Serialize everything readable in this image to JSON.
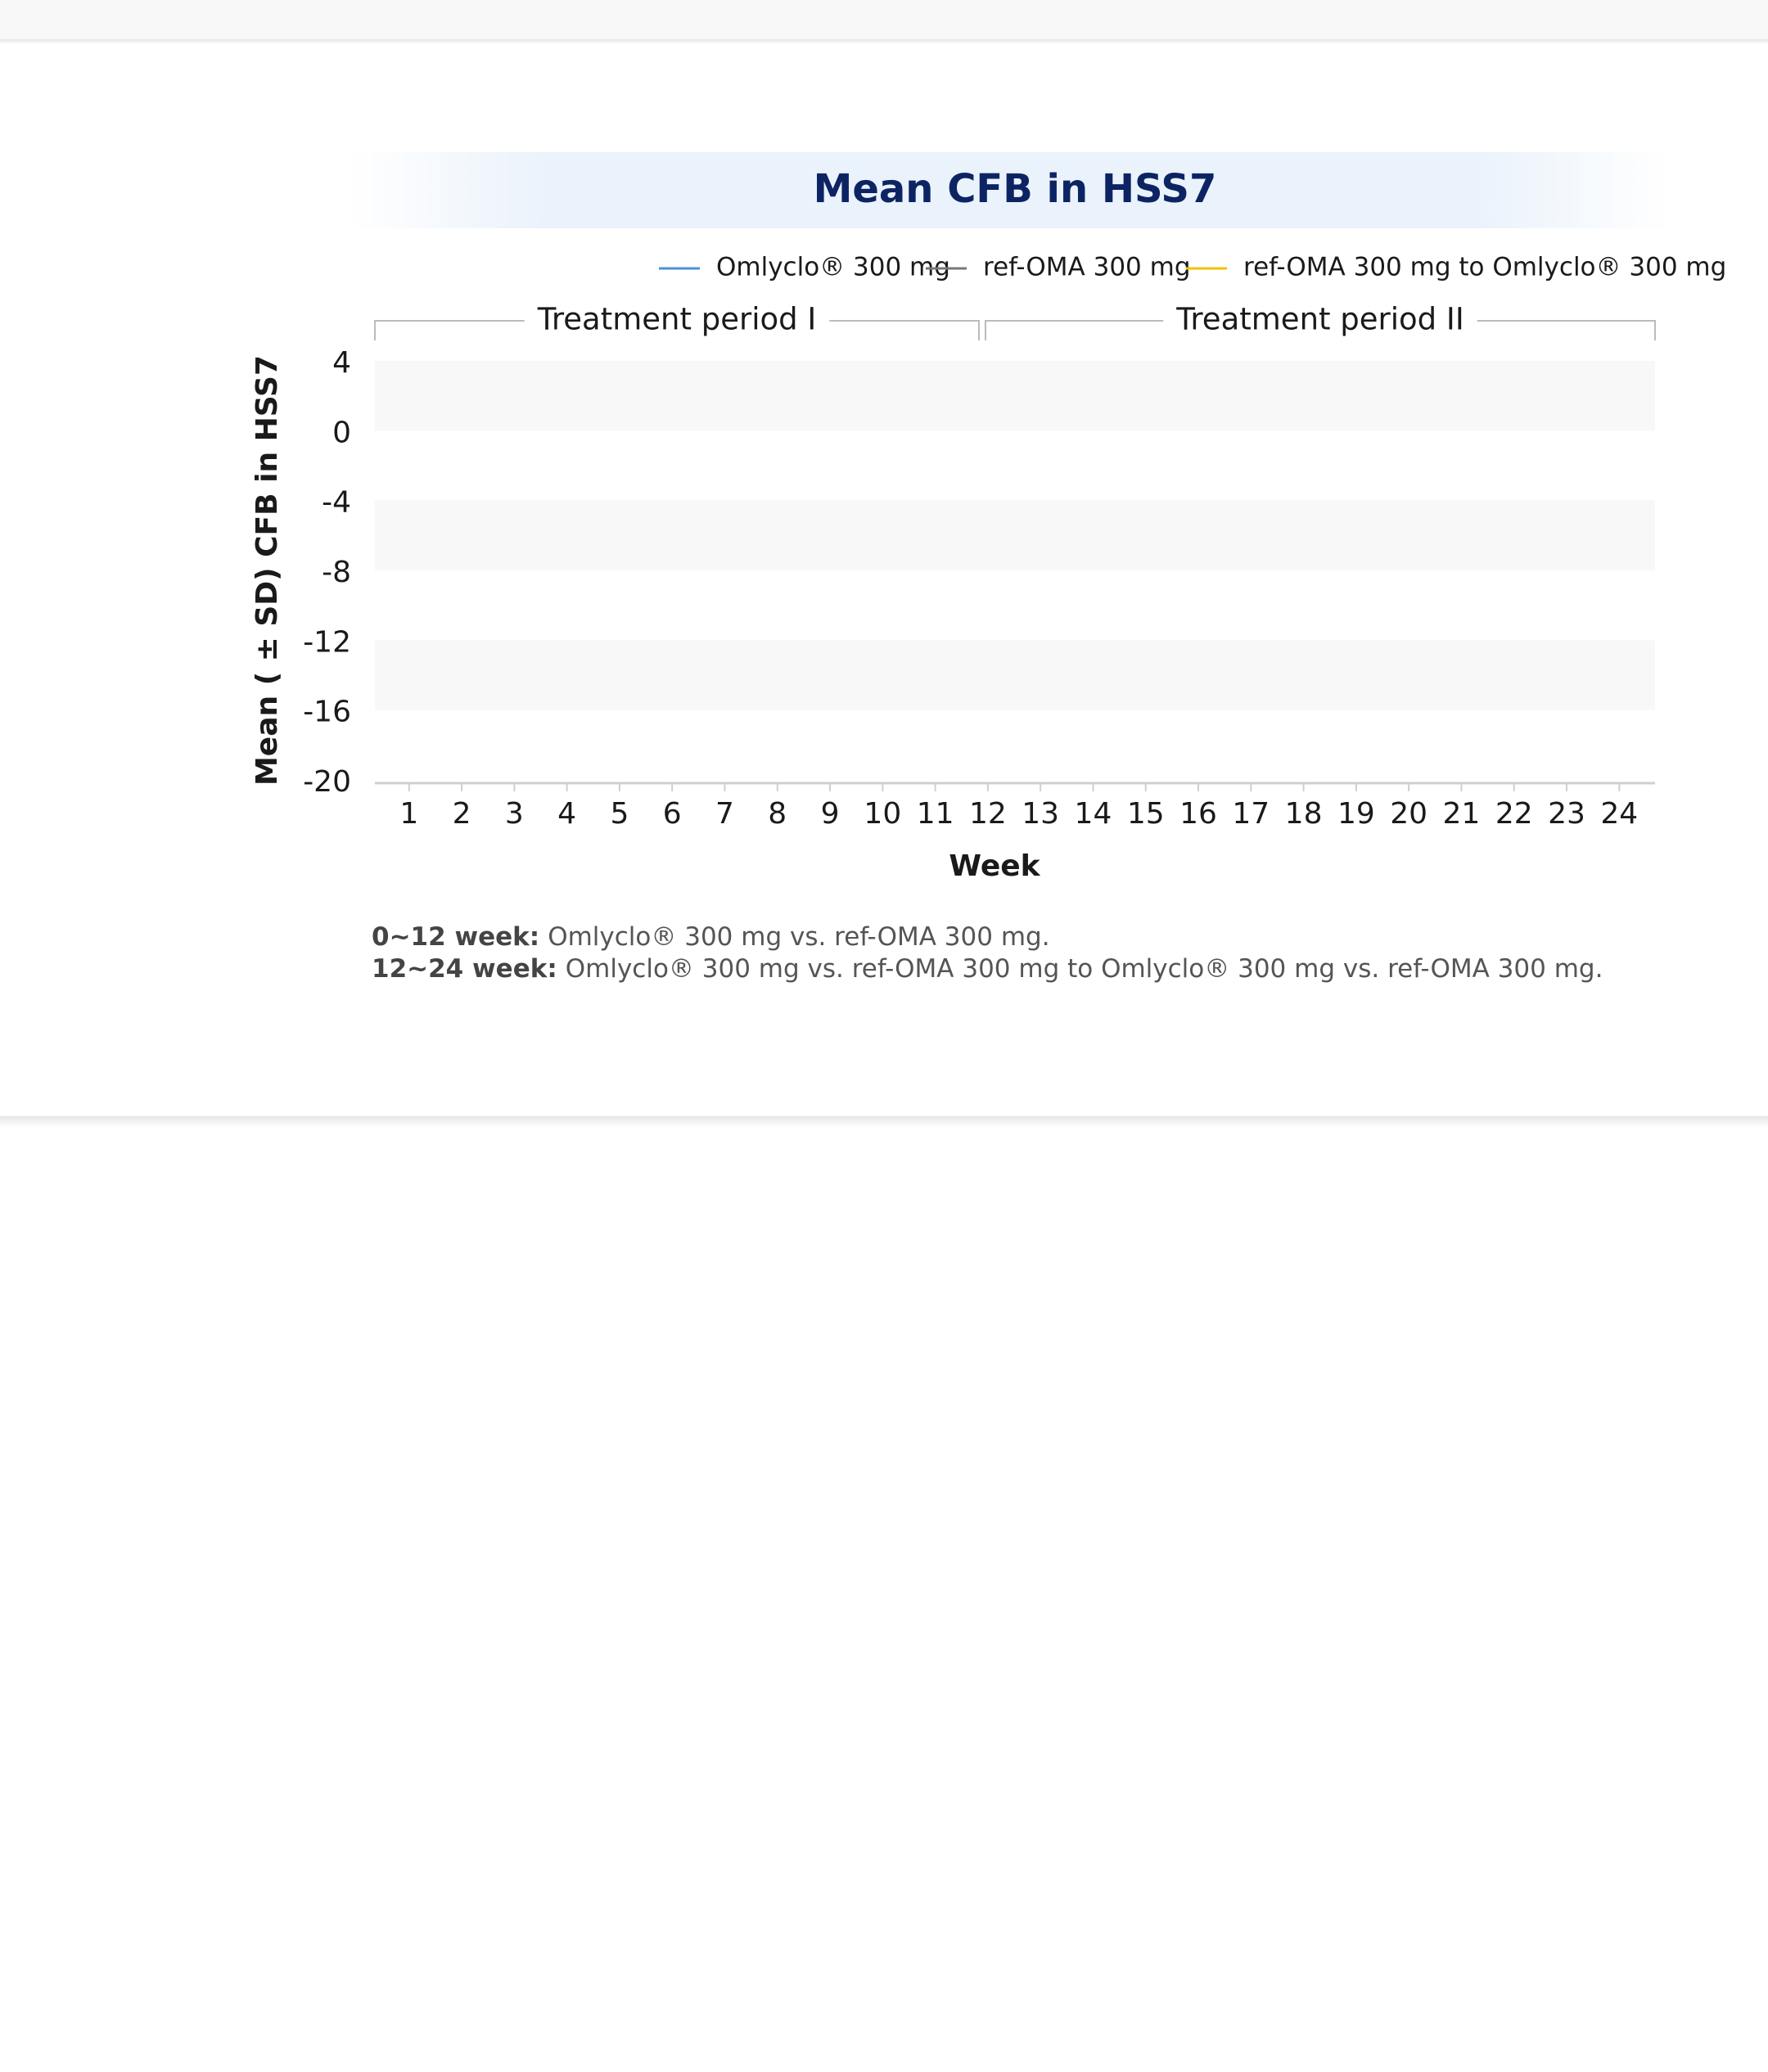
{
  "chart_data": {
    "type": "line",
    "title": "Mean CFB in HSS7",
    "series": [
      {
        "name": "Omlyclo® 300 mg",
        "color": "#4a90d9"
      },
      {
        "name": "ref-OMA 300 mg",
        "color": "#777777"
      },
      {
        "name": "ref-OMA 300 mg to Omlyclo® 300 mg",
        "color": "#f2c200"
      }
    ],
    "periods": [
      "Treatment period I",
      "Treatment period II"
    ],
    "xlabel": "Week",
    "ylabel": "Mean ( ± SD) CFB in HSS7",
    "xlim": [
      0.35,
      24.68
    ],
    "xticks": [
      1,
      2,
      3,
      4,
      5,
      6,
      7,
      8,
      9,
      10,
      11,
      12,
      13,
      14,
      15,
      16,
      17,
      18,
      19,
      20,
      21,
      22,
      23,
      24
    ],
    "ylim": [
      -20,
      4
    ],
    "yticks": [
      4,
      0,
      -4,
      -8,
      -12,
      -16,
      -20
    ],
    "bands": true,
    "footnotes": [
      {
        "label": "0~12 week:",
        "text": "Omlyclo® 300 mg vs. ref-OMA 300 mg."
      },
      {
        "label": "12~24 week:",
        "text": "Omlyclo® 300 mg vs. ref-OMA 300 mg to Omlyclo® 300 mg vs. ref-OMA 300 mg."
      }
    ]
  }
}
